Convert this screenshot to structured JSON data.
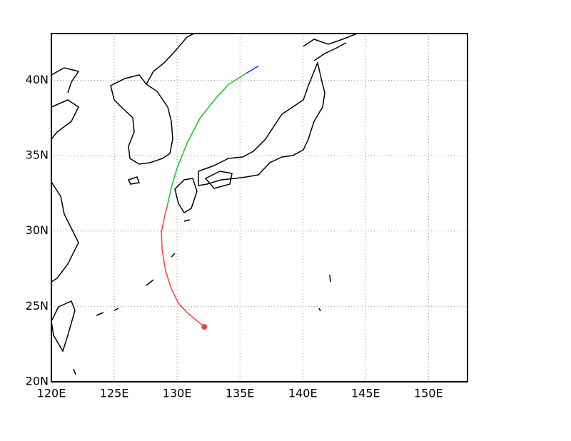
{
  "chart_data": {
    "type": "map-track",
    "xlim": [
      120,
      153.1
    ],
    "ylim": [
      20,
      43.1
    ],
    "xticks": [
      {
        "value": 120,
        "label": "120E"
      },
      {
        "value": 125,
        "label": "125E"
      },
      {
        "value": 130,
        "label": "130E"
      },
      {
        "value": 135,
        "label": "135E"
      },
      {
        "value": 140,
        "label": "140E"
      },
      {
        "value": 145,
        "label": "145E"
      },
      {
        "value": 150,
        "label": "150E"
      }
    ],
    "yticks": [
      {
        "value": 20,
        "label": "20N"
      },
      {
        "value": 25,
        "label": "25N"
      },
      {
        "value": 30,
        "label": "30N"
      },
      {
        "value": 35,
        "label": "35N"
      },
      {
        "value": 40,
        "label": "40N"
      }
    ],
    "grid": true,
    "series": [
      {
        "color": "#ff4040",
        "x": [
          132.16,
          130.8,
          130.11,
          129.55,
          129.09,
          128.81,
          128.75,
          128.98,
          129.26
        ],
        "values": [
          23.64,
          24.58,
          25.2,
          26.15,
          27.33,
          28.75,
          29.93,
          30.87,
          31.82
        ]
      },
      {
        "color": "#20c020",
        "x": [
          129.26,
          129.55,
          130.0,
          130.8,
          131.82,
          132.95,
          134.09,
          135.51
        ],
        "values": [
          31.82,
          32.91,
          34.18,
          35.84,
          37.49,
          38.68,
          39.72,
          40.47
        ]
      },
      {
        "color": "#2040ff",
        "x": [
          135.51,
          136.48
        ],
        "values": [
          40.47,
          40.95
        ]
      }
    ]
  }
}
